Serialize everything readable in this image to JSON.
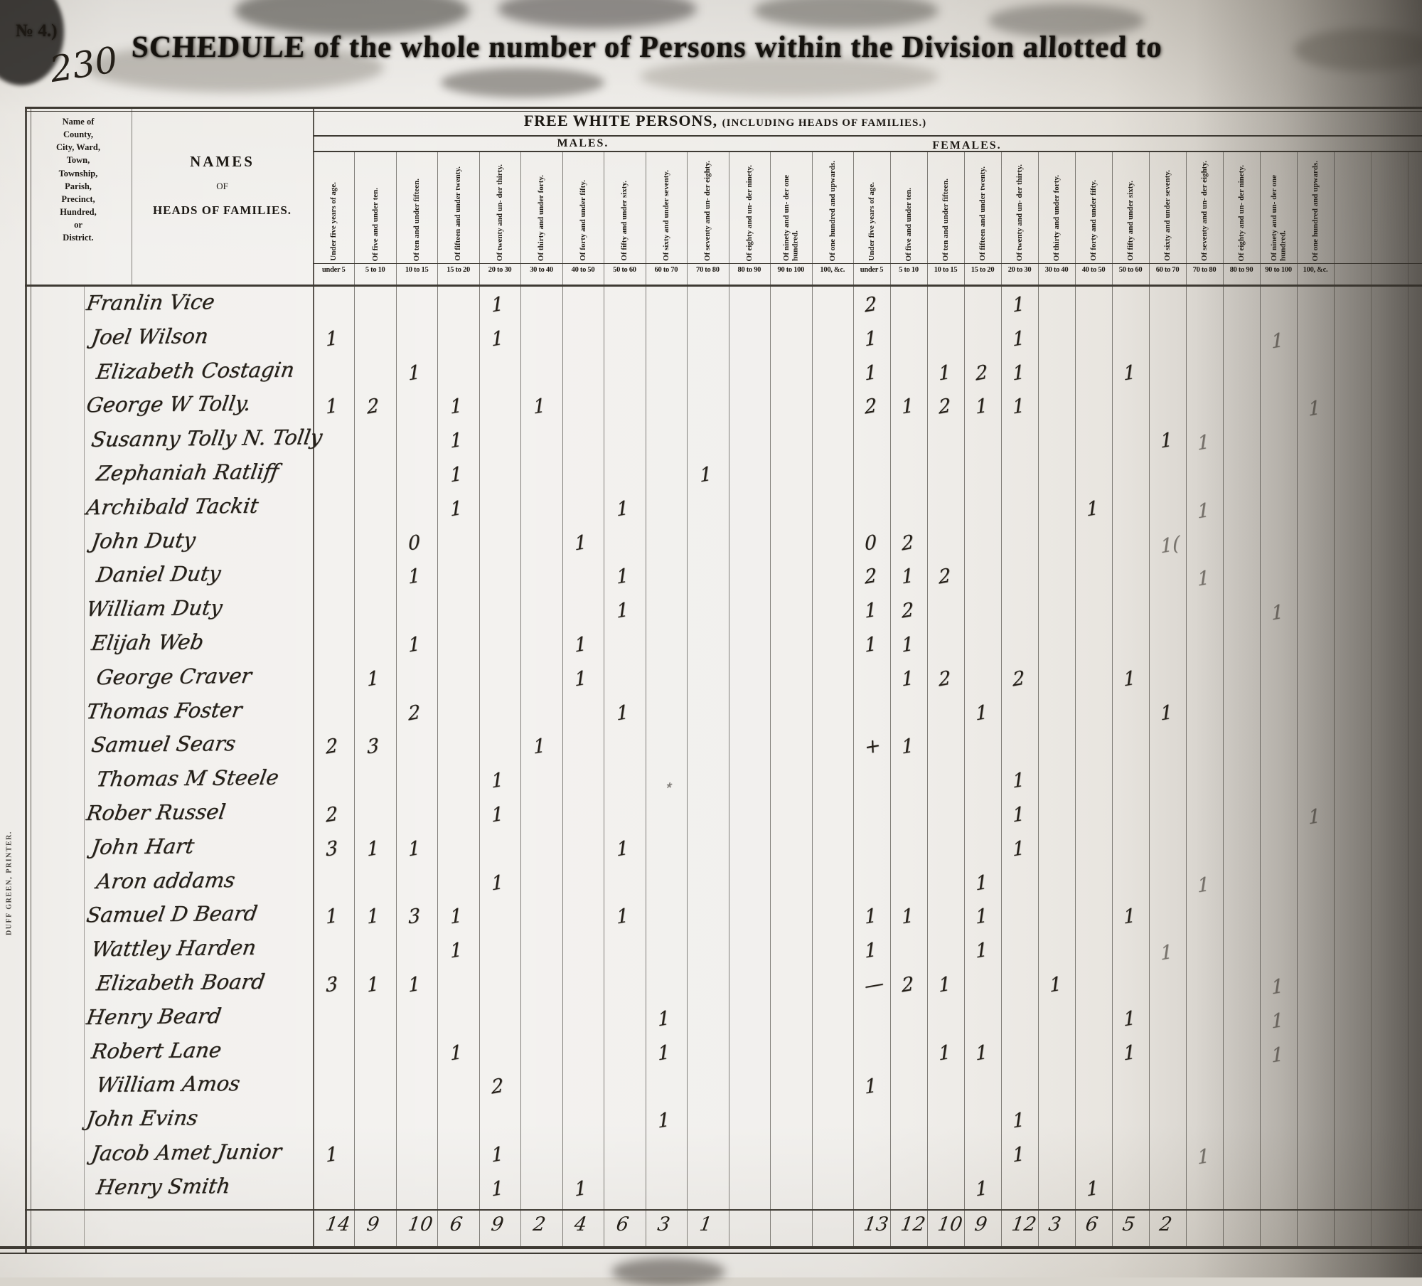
{
  "page": {
    "corner_label": "№ 4.)",
    "page_number": "230",
    "title": "SCHEDULE of the whole number of Persons within the Division allotted to",
    "printer_credit": "DUFF GREEN, PRINTER."
  },
  "colors": {
    "paper": "#dedad3",
    "print_ink": "#1c1813",
    "handwriting_ink": "#241f18",
    "grid_line": "#3e3a33"
  },
  "table": {
    "county_header_lines": [
      "Name of",
      "County,",
      "City, Ward,",
      "Town,",
      "Township,",
      "Parish,",
      "Precinct,",
      "Hundred,",
      "or",
      "District."
    ],
    "names_header": {
      "line1": "NAMES",
      "line2": "OF",
      "line3": "HEADS OF FAMILIES."
    },
    "span_header": "FREE WHITE PERSONS,",
    "span_header_paren": "(INCLUDING HEADS OF FAMILIES.)",
    "males_header": "MALES.",
    "females_header": "FEMALES.",
    "age_col_headers": [
      "Under five years of age.",
      "Of five and under ten.",
      "Of ten and under fifteen.",
      "Of fifteen and under twenty.",
      "Of twenty and un- der thirty.",
      "Of thirty and under forty.",
      "Of forty and under fifty.",
      "Of fifty and under sixty.",
      "Of sixty and under seventy.",
      "Of seventy and un- der eighty.",
      "Of eighty and un- der ninety.",
      "Of ninety and un- der one hundred.",
      "Of one hundred and upwards."
    ],
    "range_labels": [
      "under 5",
      "5 to 10",
      "10 to 15",
      "15 to 20",
      "20 to 30",
      "30 to 40",
      "40 to 50",
      "50 to 60",
      "60 to 70",
      "70 to 80",
      "80 to 90",
      "90 to 100",
      "100, &c."
    ],
    "rows": [
      {
        "name": "Franlin Vice",
        "male": {
          "4": "1"
        },
        "female": {
          "0": "2",
          "4": "1"
        }
      },
      {
        "name": "Joel Wilson",
        "male": {
          "0": "1",
          "4": "1"
        },
        "female": {
          "0": "1",
          "4": "1"
        }
      },
      {
        "name": "Elizabeth Costagin",
        "male": {
          "2": "1"
        },
        "female": {
          "0": "1",
          "2": "1",
          "3": "2",
          "4": "1",
          "7": "1"
        }
      },
      {
        "name": "George W Tolly.",
        "male": {
          "0": "1",
          "1": "2",
          "3": "1",
          "5": "1"
        },
        "female": {
          "0": "2",
          "1": "1",
          "2": "2",
          "3": "1",
          "4": "1"
        }
      },
      {
        "name": "Susanny Tolly N. Tolly",
        "male": {
          "3": "1"
        },
        "female": {
          "8": "1"
        }
      },
      {
        "name": "Zephaniah Ratliff",
        "male": {
          "3": "1",
          "9": "1"
        },
        "female": {}
      },
      {
        "name": "Archibald Tackit",
        "male": {
          "3": "1",
          "7": "1"
        },
        "female": {
          "6": "1"
        }
      },
      {
        "name": "John Duty",
        "male": {
          "2": "0",
          "6": "1"
        },
        "female": {
          "0": "0",
          "1": "2"
        }
      },
      {
        "name": "Daniel Duty",
        "male": {
          "2": "1",
          "7": "1"
        },
        "female": {
          "0": "2",
          "1": "1",
          "2": "2"
        }
      },
      {
        "name": "William Duty",
        "male": {
          "7": "1"
        },
        "female": {
          "0": "1",
          "1": "2"
        }
      },
      {
        "name": "Elijah Web",
        "male": {
          "2": "1",
          "6": "1"
        },
        "female": {
          "0": "1",
          "1": "1"
        }
      },
      {
        "name": "George Craver",
        "male": {
          "1": "1",
          "6": "1"
        },
        "female": {
          "1": "1",
          "2": "2",
          "4": "2",
          "7": "1"
        }
      },
      {
        "name": "Thomas Foster",
        "male": {
          "2": "2",
          "7": "1"
        },
        "female": {
          "3": "1",
          "8": "1"
        }
      },
      {
        "name": "Samuel Sears",
        "male": {
          "0": "2",
          "1": "3",
          "5": "1"
        },
        "female": {
          "0": "+",
          "1": "1"
        }
      },
      {
        "name": "Thomas M Steele",
        "male": {
          "4": "1"
        },
        "female": {
          "4": "1"
        }
      },
      {
        "name": "Rober Russel",
        "male": {
          "0": "2",
          "4": "1"
        },
        "female": {
          "4": "1"
        }
      },
      {
        "name": "John Hart",
        "male": {
          "0": "3",
          "1": "1",
          "2": "1",
          "7": "1"
        },
        "female": {
          "4": "1"
        }
      },
      {
        "name": "Aron addams",
        "male": {
          "4": "1"
        },
        "female": {
          "3": "1"
        }
      },
      {
        "name": "Samuel D Beard",
        "male": {
          "0": "1",
          "1": "1",
          "2": "3",
          "3": "1",
          "7": "1"
        },
        "female": {
          "0": "1",
          "1": "1",
          "3": "1",
          "7": "1"
        }
      },
      {
        "name": "Wattley Harden",
        "male": {
          "3": "1"
        },
        "female": {
          "0": "1",
          "3": "1"
        }
      },
      {
        "name": "Elizabeth Board",
        "male": {
          "0": "3",
          "1": "1",
          "2": "1"
        },
        "female": {
          "0": "—",
          "1": "2",
          "2": "1",
          "5": "1"
        }
      },
      {
        "name": "Henry Beard",
        "male": {
          "8": "1"
        },
        "female": {
          "7": "1"
        }
      },
      {
        "name": "Robert Lane",
        "male": {
          "3": "1",
          "8": "1"
        },
        "female": {
          "2": "1",
          "3": "1",
          "7": "1"
        }
      },
      {
        "name": "William Amos",
        "male": {
          "4": "2"
        },
        "female": {
          "0": "1"
        }
      },
      {
        "name": "John Evins",
        "male": {
          "8": "1"
        },
        "female": {
          "4": "1"
        }
      },
      {
        "name": "Jacob Amet Junior",
        "male": {
          "0": "1",
          "4": "1"
        },
        "female": {
          "4": "1"
        }
      },
      {
        "name": "Henry Smith",
        "male": {
          "4": "1",
          "6": "1"
        },
        "female": {
          "3": "1",
          "6": "1"
        }
      }
    ],
    "totals": {
      "male": [
        "14",
        "9",
        "10",
        "6",
        "9",
        "2",
        "4",
        "6",
        "3",
        "1",
        "",
        "",
        ""
      ],
      "female": [
        "13",
        "12",
        "10",
        "9",
        "12",
        "3",
        "6",
        "5",
        "2",
        "",
        "",
        "",
        ""
      ]
    },
    "stray_marks": [
      {
        "row": 2,
        "section": "female",
        "col": 11,
        "glyph": "1"
      },
      {
        "row": 4,
        "section": "female",
        "col": 12,
        "glyph": "1"
      },
      {
        "row": 5,
        "section": "female",
        "col": 9,
        "glyph": "1"
      },
      {
        "row": 7,
        "section": "female",
        "col": 9,
        "glyph": "1"
      },
      {
        "row": 8,
        "section": "female",
        "col": 8,
        "glyph": "1("
      },
      {
        "row": 9,
        "section": "female",
        "col": 9,
        "glyph": "1"
      },
      {
        "row": 10,
        "section": "female",
        "col": 11,
        "glyph": "1"
      },
      {
        "row": 15,
        "section": "male",
        "col": 8,
        "glyph": "﹡"
      },
      {
        "row": 16,
        "section": "female",
        "col": 12,
        "glyph": "1"
      },
      {
        "row": 18,
        "section": "female",
        "col": 9,
        "glyph": "1"
      },
      {
        "row": 20,
        "section": "female",
        "col": 8,
        "glyph": "1"
      },
      {
        "row": 21,
        "section": "female",
        "col": 11,
        "glyph": "1"
      },
      {
        "row": 22,
        "section": "female",
        "col": 11,
        "glyph": "1"
      },
      {
        "row": 23,
        "section": "female",
        "col": 11,
        "glyph": "1"
      },
      {
        "row": 26,
        "section": "female",
        "col": 9,
        "glyph": "1"
      }
    ]
  }
}
